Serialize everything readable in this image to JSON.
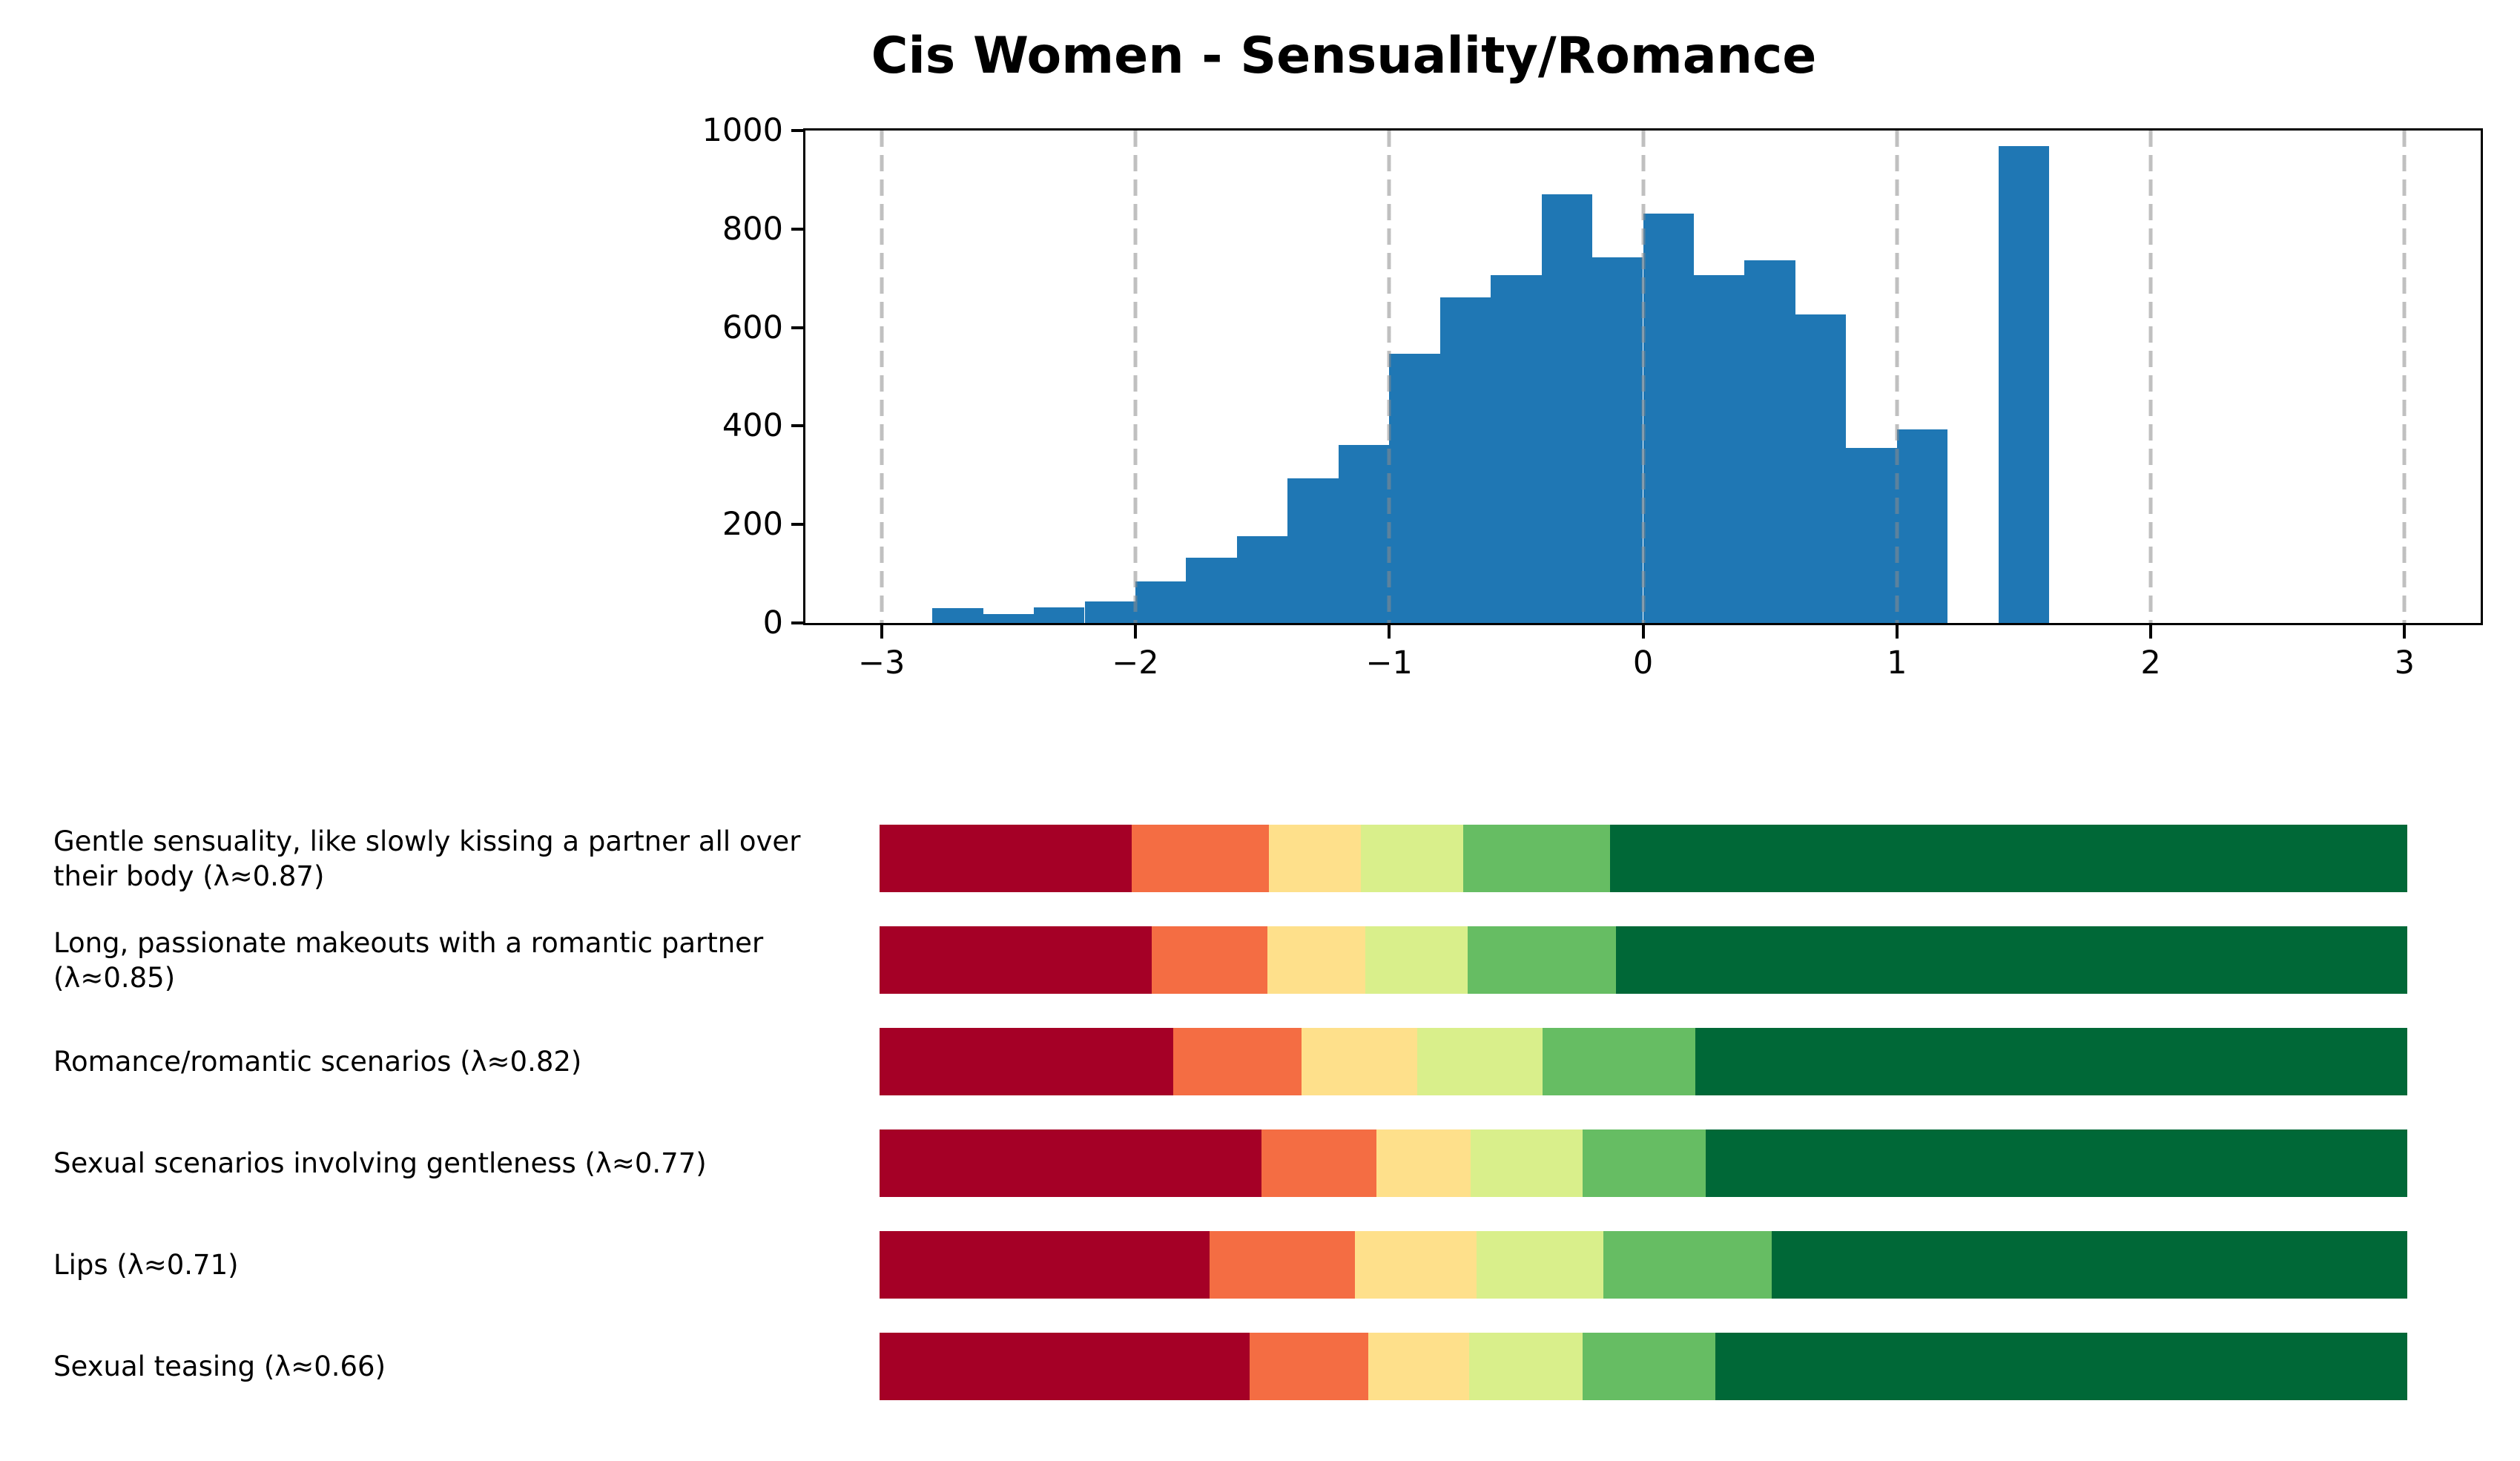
{
  "figure": {
    "background": "#ffffff",
    "text_color": "#000000"
  },
  "chart_data": [
    {
      "type": "bar",
      "subtype": "histogram",
      "title": "Cis Women - Sensuality/Romance",
      "bar_color": "#1f77b4",
      "xlim": [
        -3.3,
        3.3
      ],
      "ylim": [
        0,
        1000
      ],
      "xticks": [
        -3,
        -2,
        -1,
        0,
        1,
        2,
        3
      ],
      "xtick_labels": [
        "−3",
        "−2",
        "−1",
        "0",
        "1",
        "2",
        "3"
      ],
      "yticks": [
        0,
        200,
        400,
        600,
        800,
        1000
      ],
      "ytick_labels": [
        "0",
        "200",
        "400",
        "600",
        "800",
        "1000"
      ],
      "bin_start": -2.8,
      "bin_width": 0.2,
      "counts": [
        30,
        18,
        32,
        43,
        85,
        132,
        176,
        293,
        362,
        546,
        661,
        706,
        871,
        742,
        831,
        707,
        737,
        626,
        356,
        393,
        0,
        969
      ],
      "grid": {
        "axis": "x",
        "style": "dashed",
        "color": "rgba(140,140,140,0.55)",
        "drawn_over_bars": true
      },
      "legend": "none"
    },
    {
      "type": "bar",
      "subtype": "stacked-horizontal-likert",
      "palette": [
        "#a50026",
        "#f46d43",
        "#fee08b",
        "#d9ef8b",
        "#66bd63",
        "#006837"
      ],
      "palette_names": [
        "dark-red",
        "orange",
        "yellow",
        "light-yellow-green",
        "medium-green",
        "dark-green"
      ],
      "rows": [
        {
          "label": "Gentle sensuality, like slowly kissing a partner all over their body (λ≈0.87)",
          "pct": [
            16.5,
            9.0,
            6.0,
            6.7,
            9.6,
            52.2
          ]
        },
        {
          "label": "Long, passionate makeouts with a romantic partner (λ≈0.85)",
          "pct": [
            17.8,
            7.6,
            6.4,
            6.7,
            9.7,
            51.8
          ]
        },
        {
          "label": "Romance/romantic scenarios (λ≈0.82)",
          "pct": [
            19.2,
            8.4,
            7.6,
            8.2,
            10.0,
            46.6
          ]
        },
        {
          "label": "Sexual scenarios involving gentleness (λ≈0.77)",
          "pct": [
            25.0,
            7.5,
            6.2,
            7.3,
            8.1,
            45.9
          ]
        },
        {
          "label": "Lips (λ≈0.71)",
          "pct": [
            21.6,
            9.5,
            8.0,
            8.3,
            11.0,
            41.6
          ]
        },
        {
          "label": "Sexual teasing (λ≈0.66)",
          "pct": [
            24.2,
            7.8,
            6.6,
            7.4,
            8.7,
            45.3
          ]
        }
      ]
    }
  ]
}
